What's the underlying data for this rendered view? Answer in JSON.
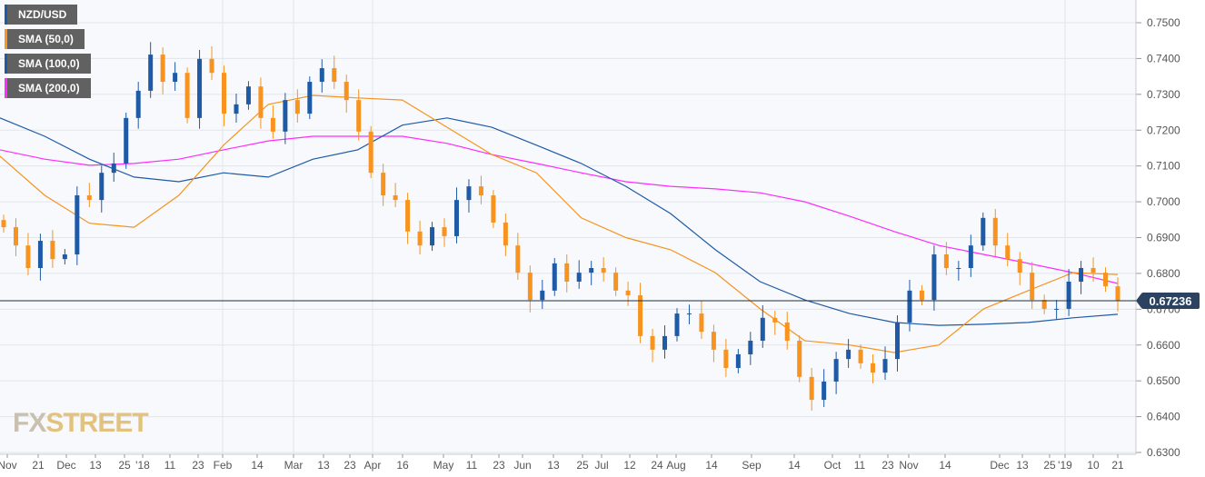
{
  "legend": [
    {
      "label": "NZD/USD",
      "color": "#1f5aa6"
    },
    {
      "label": "SMA (50,0)",
      "color": "#f7931e"
    },
    {
      "label": "SMA (100,0)",
      "color": "#1f5aa6"
    },
    {
      "label": "SMA (200,0)",
      "color": "#ff2bff"
    }
  ],
  "watermark": {
    "fx": "FX",
    "street": "STREET"
  },
  "chart_data": {
    "type": "candlestick",
    "title": "NZD/USD",
    "ylim": [
      0.63,
      0.75
    ],
    "yticks": [
      "0.7500",
      "0.7400",
      "0.7300",
      "0.7200",
      "0.7100",
      "0.7000",
      "0.6900",
      "0.6800",
      "0.6700",
      "0.6600",
      "0.6500",
      "0.6400",
      "0.6300"
    ],
    "xticks": [
      "Nov",
      "21",
      "Dec",
      "13",
      "25",
      "'18",
      "11",
      "23",
      "Feb",
      "14",
      "Mar",
      "13",
      "23",
      "Apr",
      "16",
      "May",
      "11",
      "23",
      "Jun",
      "13",
      "25",
      "Jul",
      "12",
      "24",
      "Aug",
      "14",
      "Sep",
      "14",
      "Oct",
      "11",
      "23",
      "Nov",
      "14",
      "Dec",
      "13",
      "25",
      "'19",
      "10",
      "21"
    ],
    "last_price": "0.67236",
    "last_value": 0.67236,
    "colors": {
      "up": "#1f5aa6",
      "down": "#f7931e",
      "sma50": "#f7931e",
      "sma100": "#1f5aa6",
      "sma200": "#ff2bff"
    },
    "closes": [
      0.6929,
      0.6878,
      0.6815,
      0.6891,
      0.684,
      0.6853,
      0.7018,
      0.7005,
      0.7081,
      0.7107,
      0.7234,
      0.731,
      0.7411,
      0.7335,
      0.736,
      0.7234,
      0.7399,
      0.736,
      0.7246,
      0.7272,
      0.7322,
      0.7234,
      0.7196,
      0.7284,
      0.7246,
      0.7335,
      0.7373,
      0.7335,
      0.7284,
      0.7196,
      0.7081,
      0.7018,
      0.7005,
      0.6917,
      0.6878,
      0.6929,
      0.6904,
      0.7005,
      0.7043,
      0.7018,
      0.6942,
      0.6878,
      0.6802,
      0.6726,
      0.6752,
      0.6828,
      0.6777,
      0.6802,
      0.6815,
      0.6802,
      0.6752,
      0.6739,
      0.6625,
      0.6587,
      0.6625,
      0.6688,
      0.6688,
      0.6637,
      0.6587,
      0.6536,
      0.6574,
      0.6612,
      0.6676,
      0.6663,
      0.6612,
      0.6511,
      0.6447,
      0.6498,
      0.6561,
      0.6587,
      0.6549,
      0.6523,
      0.6561,
      0.6663,
      0.6752,
      0.6726,
      0.6853,
      0.6815,
      0.6815,
      0.6878,
      0.6955,
      0.6878,
      0.684,
      0.6802,
      0.6726,
      0.6701,
      0.6701,
      0.6777,
      0.6815,
      0.6802,
      0.6764,
      0.6724
    ],
    "sma50": [
      0.7127,
      0.7018,
      0.694,
      0.6929,
      0.7018,
      0.7158,
      0.7272,
      0.7297,
      0.729,
      0.7284,
      0.7208,
      0.7132,
      0.7081,
      0.6955,
      0.69,
      0.6866,
      0.6802,
      0.6701,
      0.6612,
      0.66,
      0.6579,
      0.66,
      0.6701,
      0.6752,
      0.6802,
      0.6797
    ],
    "sma100": [
      0.7234,
      0.7183,
      0.7119,
      0.7069,
      0.7056,
      0.7081,
      0.7069,
      0.7119,
      0.7145,
      0.7214,
      0.7234,
      0.7208,
      0.7158,
      0.7107,
      0.7043,
      0.6967,
      0.6866,
      0.6777,
      0.6726,
      0.6688,
      0.6663,
      0.6655,
      0.6658,
      0.6663,
      0.6676,
      0.6686
    ],
    "sma200": [
      0.7145,
      0.7119,
      0.7102,
      0.7107,
      0.7119,
      0.7145,
      0.717,
      0.7183,
      0.7183,
      0.7183,
      0.7163,
      0.7132,
      0.7107,
      0.7081,
      0.7056,
      0.7043,
      0.7036,
      0.7025,
      0.7,
      0.696,
      0.6917,
      0.6878,
      0.6853,
      0.6828,
      0.6802,
      0.6772
    ]
  }
}
